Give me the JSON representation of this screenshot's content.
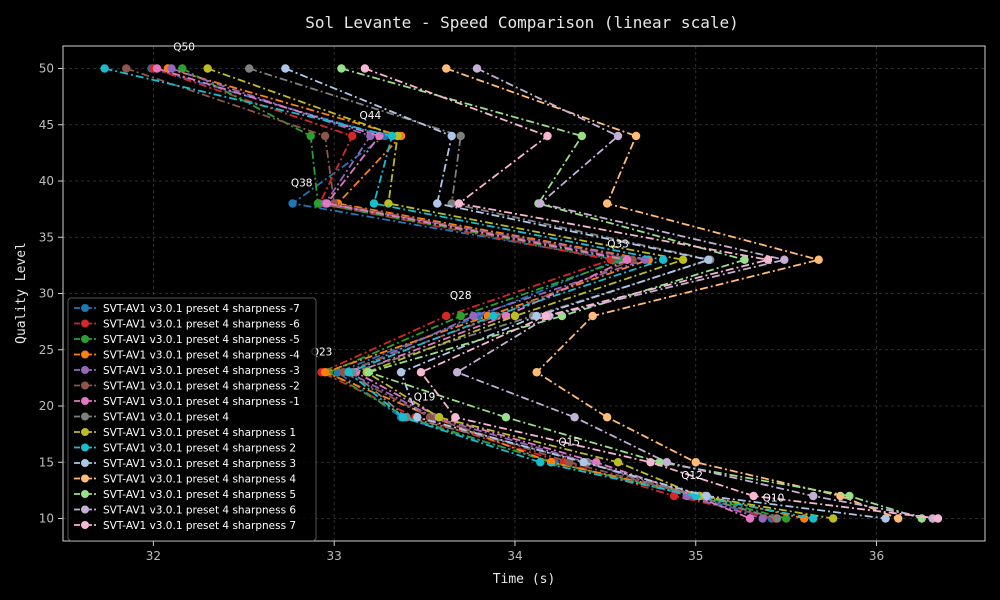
{
  "chart_data": {
    "type": "line",
    "title": "Sol Levante - Speed Comparison (linear scale)",
    "xlabel": "Time (s)",
    "ylabel": "Quality Level",
    "xlim": [
      31.5,
      36.6
    ],
    "ylim": [
      8,
      52
    ],
    "xticks": [
      32,
      33,
      34,
      35,
      36
    ],
    "yticks": [
      10,
      15,
      20,
      25,
      30,
      35,
      40,
      45,
      50
    ],
    "grid": true,
    "legend_position": "lower-left",
    "background": "#000000",
    "quality_levels": [
      50,
      44,
      38,
      33,
      28,
      23,
      19,
      15,
      12,
      10
    ],
    "annotations": [
      {
        "text": "Q50",
        "x": 32.17,
        "y": 51.6
      },
      {
        "text": "Q44",
        "x": 33.2,
        "y": 45.5
      },
      {
        "text": "Q38",
        "x": 32.82,
        "y": 39.5
      },
      {
        "text": "Q33",
        "x": 34.57,
        "y": 34.1
      },
      {
        "text": "Q28",
        "x": 33.7,
        "y": 29.5
      },
      {
        "text": "Q23",
        "x": 32.93,
        "y": 24.5
      },
      {
        "text": "Q19",
        "x": 33.5,
        "y": 20.5
      },
      {
        "text": "Q15",
        "x": 34.3,
        "y": 16.5
      },
      {
        "text": "Q12",
        "x": 34.98,
        "y": 13.5
      },
      {
        "text": "Q10",
        "x": 35.43,
        "y": 11.5
      }
    ],
    "series": [
      {
        "name": "SVT-AV1 v3.0.1 preset 4 sharpness -7",
        "color": "#1f77b4",
        "dash": "8,3,2,3",
        "y": [
          50,
          44,
          38,
          33,
          28,
          23,
          19,
          15,
          12,
          10
        ],
        "x": [
          31.99,
          33.28,
          32.77,
          34.57,
          33.8,
          33.02,
          33.37,
          34.22,
          34.97,
          35.42
        ]
      },
      {
        "name": "SVT-AV1 v3.0.1 preset 4 sharpness -6",
        "color": "#d62728",
        "dash": "8,3,2,3",
        "y": [
          50,
          44,
          38,
          33,
          28,
          23,
          19,
          15,
          12,
          10
        ],
        "x": [
          32.0,
          33.1,
          32.92,
          34.53,
          33.62,
          32.93,
          33.45,
          34.27,
          34.88,
          35.44
        ]
      },
      {
        "name": "SVT-AV1 v3.0.1 preset 4 sharpness -5",
        "color": "#2ca02c",
        "dash": "8,3,2,3",
        "y": [
          50,
          44,
          38,
          33,
          28,
          23,
          19,
          15,
          12,
          10
        ],
        "x": [
          32.16,
          32.87,
          32.91,
          34.6,
          33.7,
          32.97,
          33.4,
          34.2,
          35.02,
          35.5
        ]
      },
      {
        "name": "SVT-AV1 v3.0.1 preset 4 sharpness -4",
        "color": "#ff7f0e",
        "dash": "8,3,2,3",
        "y": [
          50,
          44,
          38,
          33,
          28,
          23,
          19,
          15,
          12,
          10
        ],
        "x": [
          32.08,
          33.37,
          33.02,
          34.74,
          33.85,
          32.95,
          33.55,
          34.2,
          35.05,
          35.6
        ]
      },
      {
        "name": "SVT-AV1 v3.0.1 preset 4 sharpness -3",
        "color": "#9467bd",
        "dash": "8,3,2,3",
        "y": [
          50,
          44,
          38,
          33,
          28,
          23,
          19,
          15,
          12,
          10
        ],
        "x": [
          32.1,
          33.2,
          32.95,
          34.72,
          33.77,
          33.08,
          33.55,
          34.4,
          34.95,
          35.37
        ]
      },
      {
        "name": "SVT-AV1 v3.0.1 preset 4 sharpness -2",
        "color": "#8c564b",
        "dash": "8,3,2,3",
        "y": [
          50,
          44,
          38,
          33,
          28,
          23,
          19,
          15,
          12,
          10
        ],
        "x": [
          31.85,
          32.95,
          33.0,
          34.65,
          33.9,
          33.05,
          33.53,
          34.3,
          35.0,
          35.45
        ]
      },
      {
        "name": "SVT-AV1 v3.0.1 preset 4 sharpness -1",
        "color": "#e377c2",
        "dash": "8,3,2,3",
        "y": [
          50,
          44,
          38,
          33,
          28,
          23,
          19,
          15,
          12,
          10
        ],
        "x": [
          32.02,
          33.25,
          32.96,
          34.62,
          33.95,
          33.12,
          33.58,
          34.45,
          35.0,
          35.3
        ]
      },
      {
        "name": "SVT-AV1 v3.0.1 preset 4",
        "color": "#7f7f7f",
        "dash": "8,3,2,3",
        "y": [
          50,
          44,
          38,
          33,
          28,
          23,
          19,
          15,
          12,
          10
        ],
        "x": [
          32.53,
          33.7,
          33.65,
          35.08,
          34.1,
          33.1,
          33.4,
          34.4,
          35.0,
          35.45
        ]
      },
      {
        "name": "SVT-AV1 v3.0.1 preset 4 sharpness 1",
        "color": "#bcbd22",
        "dash": "8,3,2,3",
        "y": [
          50,
          44,
          38,
          33,
          28,
          23,
          19,
          15,
          12,
          10
        ],
        "x": [
          32.3,
          33.35,
          33.3,
          34.93,
          34.0,
          33.18,
          33.58,
          34.57,
          35.02,
          35.76
        ]
      },
      {
        "name": "SVT-AV1 v3.0.1 preset 4 sharpness 2",
        "color": "#17becf",
        "dash": "8,3,2,3",
        "y": [
          50,
          44,
          38,
          33,
          28,
          23,
          19,
          15,
          12,
          10
        ],
        "x": [
          31.73,
          33.32,
          33.22,
          34.82,
          33.88,
          33.08,
          33.38,
          34.14,
          35.0,
          35.65
        ]
      },
      {
        "name": "SVT-AV1 v3.0.1 preset 4 sharpness 3",
        "color": "#aec7e8",
        "dash": "8,3,2,3",
        "y": [
          50,
          44,
          38,
          33,
          28,
          23,
          19,
          15,
          12,
          10
        ],
        "x": [
          32.73,
          33.65,
          33.57,
          35.07,
          34.12,
          33.37,
          33.46,
          34.38,
          35.06,
          36.05
        ]
      },
      {
        "name": "SVT-AV1 v3.0.1 preset 4 sharpness 4",
        "color": "#ffbb78",
        "dash": "8,3,2,3",
        "y": [
          50,
          44,
          38,
          33,
          28,
          23,
          19,
          15,
          12,
          10
        ],
        "x": [
          33.62,
          34.67,
          34.51,
          35.68,
          34.43,
          34.12,
          34.51,
          35.0,
          35.8,
          36.12
        ]
      },
      {
        "name": "SVT-AV1 v3.0.1 preset 4 sharpness 5",
        "color": "#98df8a",
        "dash": "8,3,2,3",
        "y": [
          50,
          44,
          38,
          33,
          28,
          23,
          19,
          15,
          12,
          10
        ],
        "x": [
          33.04,
          34.37,
          34.13,
          35.27,
          34.26,
          33.19,
          33.95,
          34.8,
          35.85,
          36.25
        ]
      },
      {
        "name": "SVT-AV1 v3.0.1 preset 4 sharpness 6",
        "color": "#c5b0d5",
        "dash": "8,3,2,3",
        "y": [
          50,
          44,
          38,
          33,
          28,
          23,
          19,
          15,
          12,
          10
        ],
        "x": [
          33.79,
          34.57,
          34.14,
          35.49,
          34.19,
          33.68,
          34.33,
          34.84,
          35.65,
          36.31
        ]
      },
      {
        "name": "SVT-AV1 v3.0.1 preset 4 sharpness 7",
        "color": "#f7b6d2",
        "dash": "8,3,2,3",
        "y": [
          50,
          44,
          38,
          33,
          28,
          23,
          19,
          15,
          12,
          10
        ],
        "x": [
          33.17,
          34.18,
          33.69,
          35.4,
          34.17,
          33.48,
          33.67,
          34.75,
          35.32,
          36.34
        ]
      }
    ]
  }
}
